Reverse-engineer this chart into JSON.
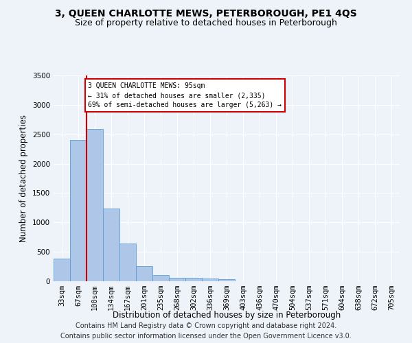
{
  "title": "3, QUEEN CHARLOTTE MEWS, PETERBOROUGH, PE1 4QS",
  "subtitle": "Size of property relative to detached houses in Peterborough",
  "xlabel": "Distribution of detached houses by size in Peterborough",
  "ylabel": "Number of detached properties",
  "footer_line1": "Contains HM Land Registry data © Crown copyright and database right 2024.",
  "footer_line2": "Contains public sector information licensed under the Open Government Licence v3.0.",
  "categories": [
    "33sqm",
    "67sqm",
    "100sqm",
    "134sqm",
    "167sqm",
    "201sqm",
    "235sqm",
    "268sqm",
    "302sqm",
    "336sqm",
    "369sqm",
    "403sqm",
    "436sqm",
    "470sqm",
    "504sqm",
    "537sqm",
    "571sqm",
    "604sqm",
    "638sqm",
    "672sqm",
    "705sqm"
  ],
  "values": [
    390,
    2400,
    2590,
    1240,
    640,
    260,
    100,
    60,
    55,
    50,
    35,
    0,
    0,
    0,
    0,
    0,
    0,
    0,
    0,
    0,
    0
  ],
  "bar_color": "#aec6e8",
  "bar_edge_color": "#5a9fd4",
  "vline_x_index": 2,
  "vline_color": "#cc0000",
  "annotation_text": "3 QUEEN CHARLOTTE MEWS: 95sqm\n← 31% of detached houses are smaller (2,335)\n69% of semi-detached houses are larger (5,263) →",
  "annotation_box_color": "#cc0000",
  "ylim": [
    0,
    3500
  ],
  "yticks": [
    0,
    500,
    1000,
    1500,
    2000,
    2500,
    3000,
    3500
  ],
  "background_color": "#eef2f9",
  "grid_color": "#ffffff",
  "title_fontsize": 10,
  "subtitle_fontsize": 9,
  "axis_label_fontsize": 8.5,
  "tick_fontsize": 7.5,
  "footer_fontsize": 7
}
